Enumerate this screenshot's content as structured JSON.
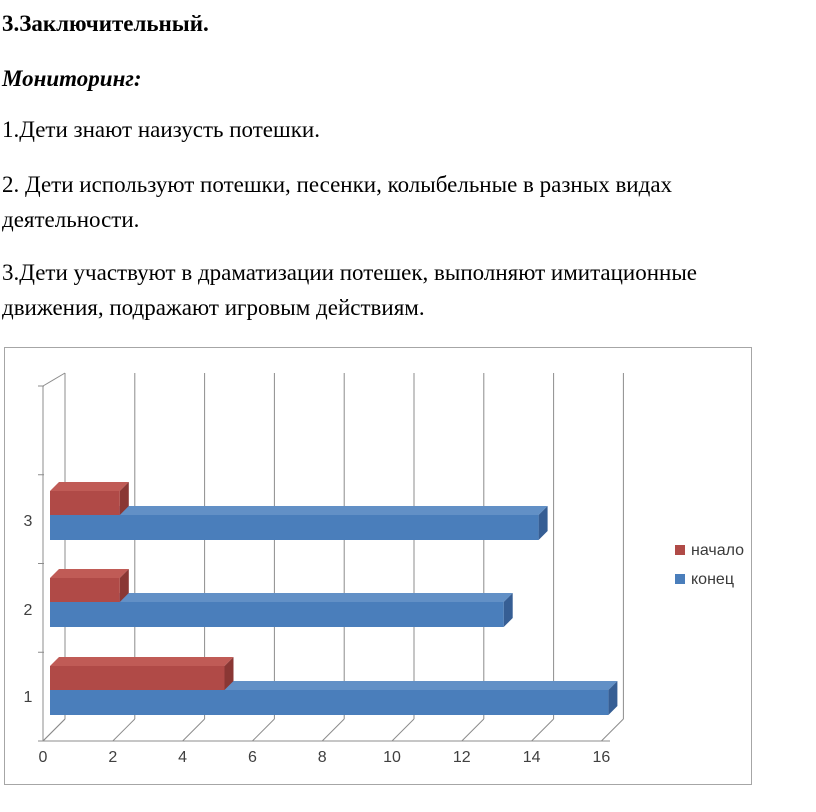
{
  "document": {
    "heading": "3.Заключительный.",
    "subheading": "Мониторинг:",
    "paragraphs": [
      "1.Дети знают наизусть потешки.",
      "2. Дети  используют потешки, песенки, колыбельные в разных видах деятельности.",
      "3.Дети участвуют в драматизации потешек, выполняют имитационные движения,  подражают игровым действиям."
    ]
  },
  "chart_data": {
    "type": "bar",
    "orientation": "horizontal",
    "style": "3d",
    "title": "",
    "xlabel": "",
    "ylabel": "",
    "categories": [
      "1",
      "2",
      "3"
    ],
    "series": [
      {
        "name": "начало",
        "values": [
          5,
          2,
          2
        ],
        "color": {
          "front": "#b04a47",
          "top": "#c05b56",
          "side": "#8a3734"
        }
      },
      {
        "name": "конец",
        "values": [
          16,
          13,
          14
        ],
        "color": {
          "front": "#4a7ebb",
          "top": "#6290c6",
          "side": "#365e94"
        }
      }
    ],
    "x_ticks": [
      0,
      2,
      4,
      6,
      8,
      10,
      12,
      14,
      16
    ],
    "xlim": [
      0,
      16
    ],
    "grid": true,
    "legend_position": "right",
    "axis_color": "#8c8c8c",
    "label_color": "#404040",
    "legend_text_color": "#3a3a3a"
  }
}
